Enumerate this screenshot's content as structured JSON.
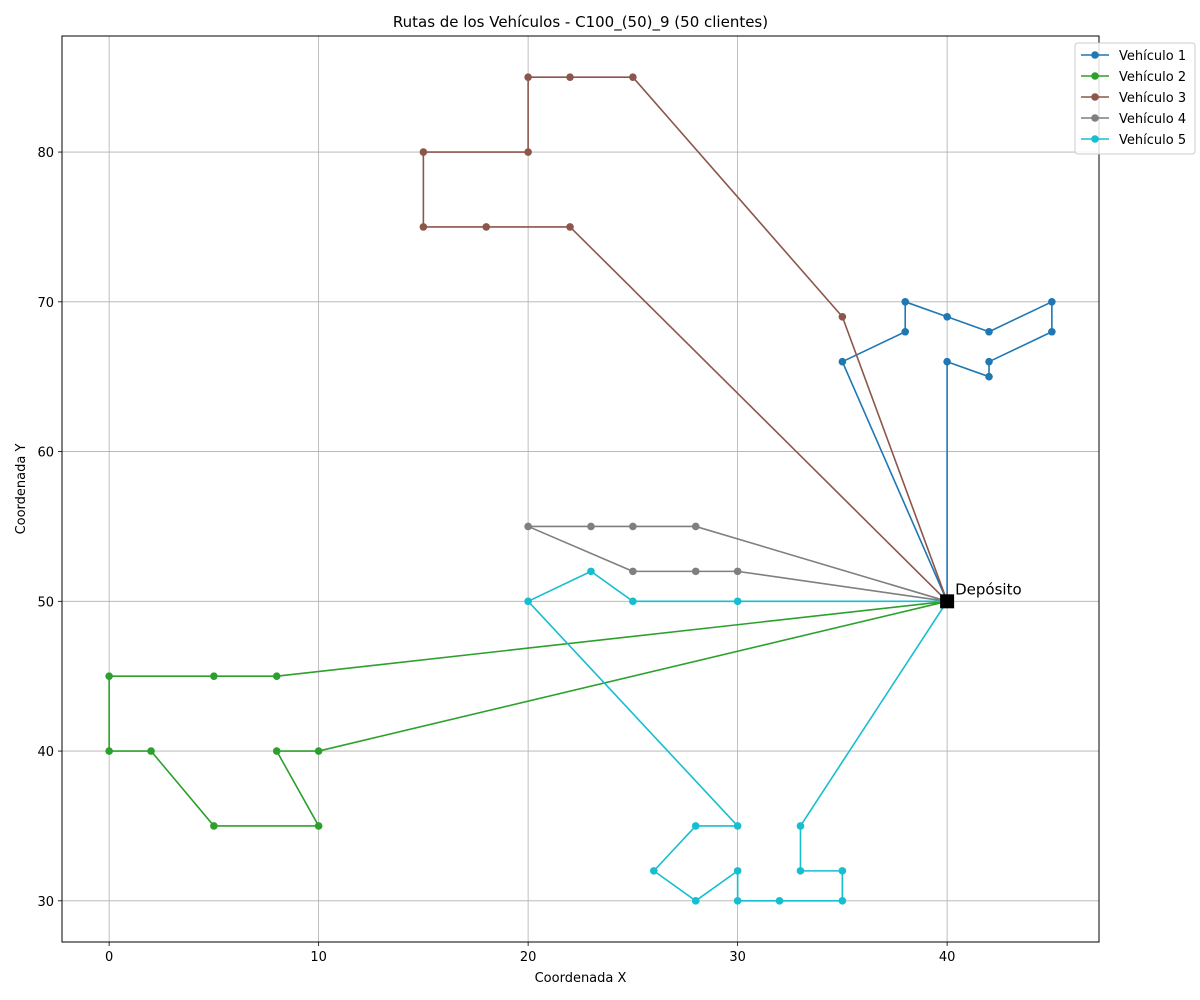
{
  "chart_data": {
    "type": "line",
    "title": "Rutas de los Vehículos - C100_(50)_9 (50 clientes)",
    "xlabel": "Coordenada X",
    "ylabel": "Coordenada Y",
    "xlim": [
      -2.25,
      47.25
    ],
    "ylim": [
      27.25,
      87.75
    ],
    "xticks": [
      0,
      10,
      20,
      30,
      40
    ],
    "yticks": [
      30,
      40,
      50,
      60,
      70,
      80
    ],
    "grid": true,
    "legend_position": "top-right",
    "depot": {
      "label": "Depósito",
      "x": 40,
      "y": 50,
      "color": "#000000"
    },
    "series": [
      {
        "name": "Vehículo 1",
        "color": "#1f77b4",
        "points": [
          [
            40,
            50
          ],
          [
            35,
            66
          ],
          [
            38,
            68
          ],
          [
            38,
            70
          ],
          [
            40,
            69
          ],
          [
            42,
            68
          ],
          [
            45,
            70
          ],
          [
            45,
            68
          ],
          [
            42,
            66
          ],
          [
            42,
            65
          ],
          [
            40,
            66
          ],
          [
            40,
            50
          ]
        ]
      },
      {
        "name": "Vehículo 2",
        "color": "#2ca02c",
        "points": [
          [
            40,
            50
          ],
          [
            8,
            45
          ],
          [
            5,
            45
          ],
          [
            0,
            45
          ],
          [
            0,
            40
          ],
          [
            2,
            40
          ],
          [
            5,
            35
          ],
          [
            10,
            35
          ],
          [
            8,
            40
          ],
          [
            10,
            40
          ],
          [
            40,
            50
          ]
        ]
      },
      {
        "name": "Vehículo 3",
        "color": "#8c564b",
        "points": [
          [
            40,
            50
          ],
          [
            35,
            69
          ],
          [
            25,
            85
          ],
          [
            22,
            85
          ],
          [
            20,
            85
          ],
          [
            20,
            80
          ],
          [
            15,
            80
          ],
          [
            15,
            75
          ],
          [
            18,
            75
          ],
          [
            22,
            75
          ],
          [
            40,
            50
          ]
        ]
      },
      {
        "name": "Vehículo 4",
        "color": "#7f7f7f",
        "points": [
          [
            40,
            50
          ],
          [
            28,
            55
          ],
          [
            25,
            55
          ],
          [
            23,
            55
          ],
          [
            20,
            55
          ],
          [
            25,
            52
          ],
          [
            28,
            52
          ],
          [
            30,
            52
          ],
          [
            40,
            50
          ]
        ]
      },
      {
        "name": "Vehículo 5",
        "color": "#17becf",
        "points": [
          [
            40,
            50
          ],
          [
            30,
            50
          ],
          [
            25,
            50
          ],
          [
            23,
            52
          ],
          [
            20,
            50
          ],
          [
            30,
            35
          ],
          [
            28,
            35
          ],
          [
            26,
            32
          ],
          [
            28,
            30
          ],
          [
            30,
            32
          ],
          [
            30,
            30
          ],
          [
            32,
            30
          ],
          [
            35,
            30
          ],
          [
            35,
            32
          ],
          [
            33,
            32
          ],
          [
            33,
            35
          ],
          [
            40,
            50
          ]
        ]
      }
    ]
  }
}
